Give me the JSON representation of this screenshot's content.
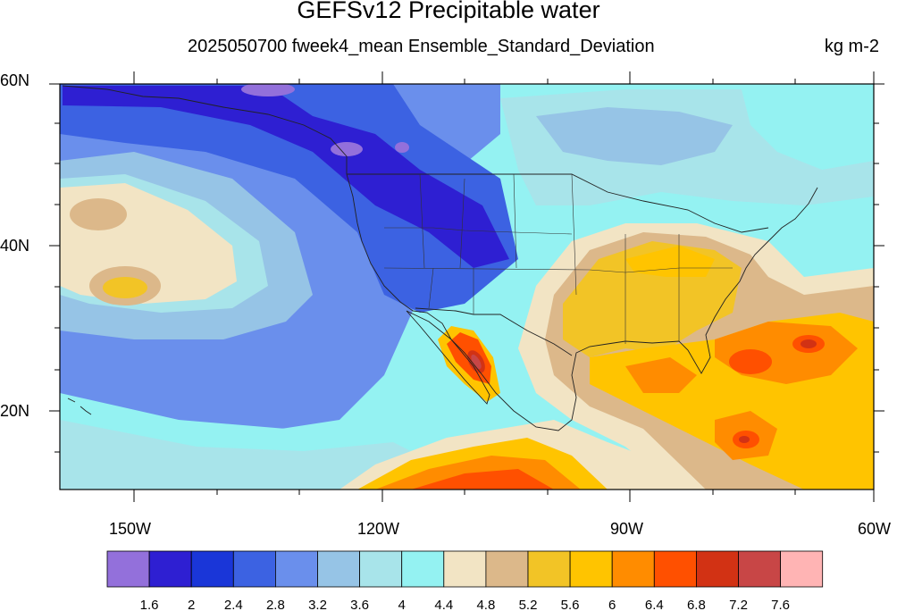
{
  "title": "GEFSv12 Precipitable water",
  "subtitle": "2025050700 fweek4_mean Ensemble_Standard_Deviation",
  "units": "kg m-2",
  "lat_labels": [
    "60N",
    "40N",
    "20N"
  ],
  "lon_labels": [
    "150W",
    "120W",
    "90W",
    "60W"
  ],
  "colorbar": {
    "colors": [
      "#9370db",
      "#2e1fd2",
      "#1a36d8",
      "#3c62e2",
      "#6a8fec",
      "#96c4e6",
      "#a8e4ea",
      "#94f2f2",
      "#f2e4c4",
      "#dcb88a",
      "#f2c426",
      "#ffc400",
      "#ff8c00",
      "#ff5000",
      "#d23214",
      "#c84646",
      "#ffb4b4"
    ],
    "labels": [
      "1.6",
      "2",
      "2.4",
      "2.8",
      "3.2",
      "3.6",
      "4",
      "4.4",
      "4.8",
      "5.2",
      "5.6",
      "6",
      "6.4",
      "6.8",
      "7.2",
      "7.6"
    ]
  }
}
